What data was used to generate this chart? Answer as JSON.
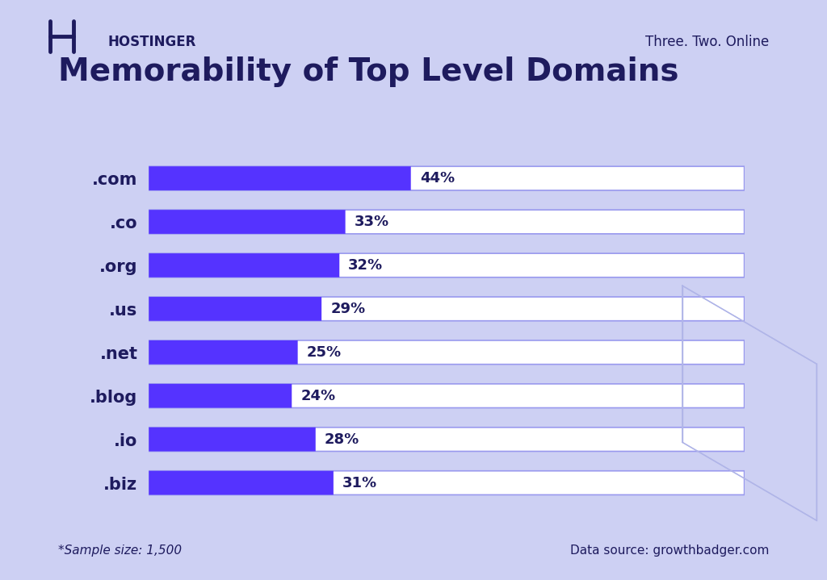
{
  "title": "Memorability of Top Level Domains",
  "categories": [
    ".com",
    ".co",
    ".org",
    ".us",
    ".net",
    ".blog",
    ".io",
    ".biz"
  ],
  "values": [
    44,
    33,
    32,
    29,
    25,
    24,
    28,
    31
  ],
  "max_value": 100,
  "bar_color": "#5533FF",
  "bg_bar_color": "#FFFFFF",
  "bar_border_color": "#9999EE",
  "background_color": "#CDD0F3",
  "title_color": "#1E1B5E",
  "label_color": "#1E1B5E",
  "value_color": "#1E1B5E",
  "footer_left": "*Sample size: 1,500",
  "footer_right": "Data source: growthbadger.com",
  "header_right": "Three. Two. Online",
  "header_brand": "HOSTINGER",
  "title_fontsize": 28,
  "label_fontsize": 15,
  "value_fontsize": 13,
  "footer_fontsize": 11,
  "header_fontsize": 12,
  "bar_height": 0.55,
  "fig_width": 10.24,
  "fig_height": 7.19
}
